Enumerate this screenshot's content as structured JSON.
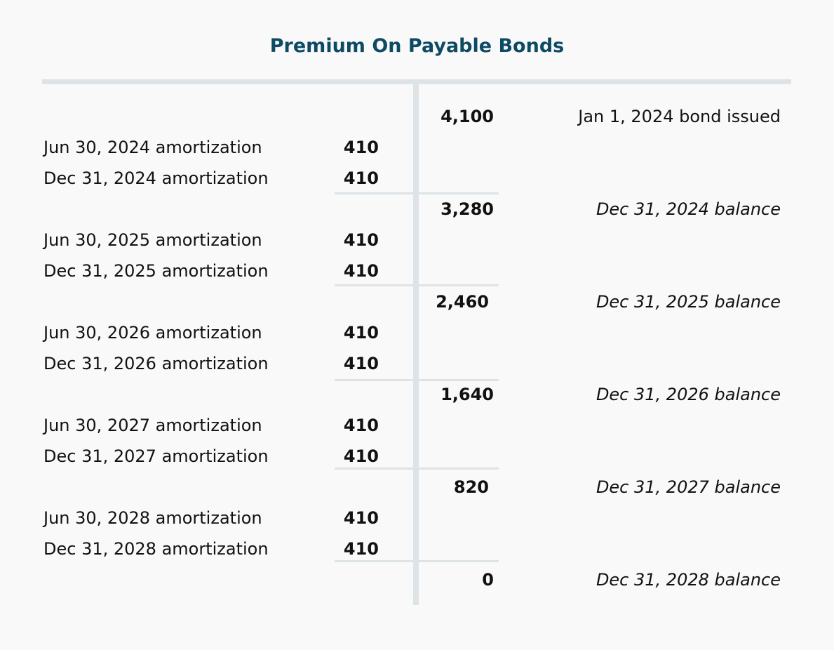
{
  "title": "Premium On Payable Bonds",
  "colors": {
    "title": "#0d4a63",
    "rule": "#dde3e7",
    "background": "#f9f9f9"
  },
  "opening": {
    "amount": "4,100",
    "note": "Jan 1, 2024 bond issued"
  },
  "debits": [
    {
      "label": "Jun 30, 2024 amortization",
      "amount": "410"
    },
    {
      "label": "Dec 31, 2024 amortization",
      "amount": "410"
    },
    {
      "label": "Jun 30, 2025 amortization",
      "amount": "410"
    },
    {
      "label": "Dec 31, 2025 amortization",
      "amount": "410"
    },
    {
      "label": "Jun 30, 2026 amortization",
      "amount": "410"
    },
    {
      "label": "Dec 31, 2026 amortization",
      "amount": "410"
    },
    {
      "label": "Jun 30, 2027 amortization",
      "amount": "410"
    },
    {
      "label": "Dec 31, 2027 amortization",
      "amount": "410"
    },
    {
      "label": "Jun 30, 2028 amortization",
      "amount": "410"
    },
    {
      "label": "Dec 31, 2028 amortization",
      "amount": "410"
    }
  ],
  "balances": [
    {
      "amount": "3,280",
      "note": "Dec 31, 2024 balance"
    },
    {
      "amount": "2,460",
      "note": "Dec 31, 2025 balance"
    },
    {
      "amount": "1,640",
      "note": "Dec 31, 2026 balance"
    },
    {
      "amount": "820",
      "note": "Dec 31, 2027 balance"
    },
    {
      "amount": "0",
      "note": "Dec 31, 2028 balance"
    }
  ]
}
